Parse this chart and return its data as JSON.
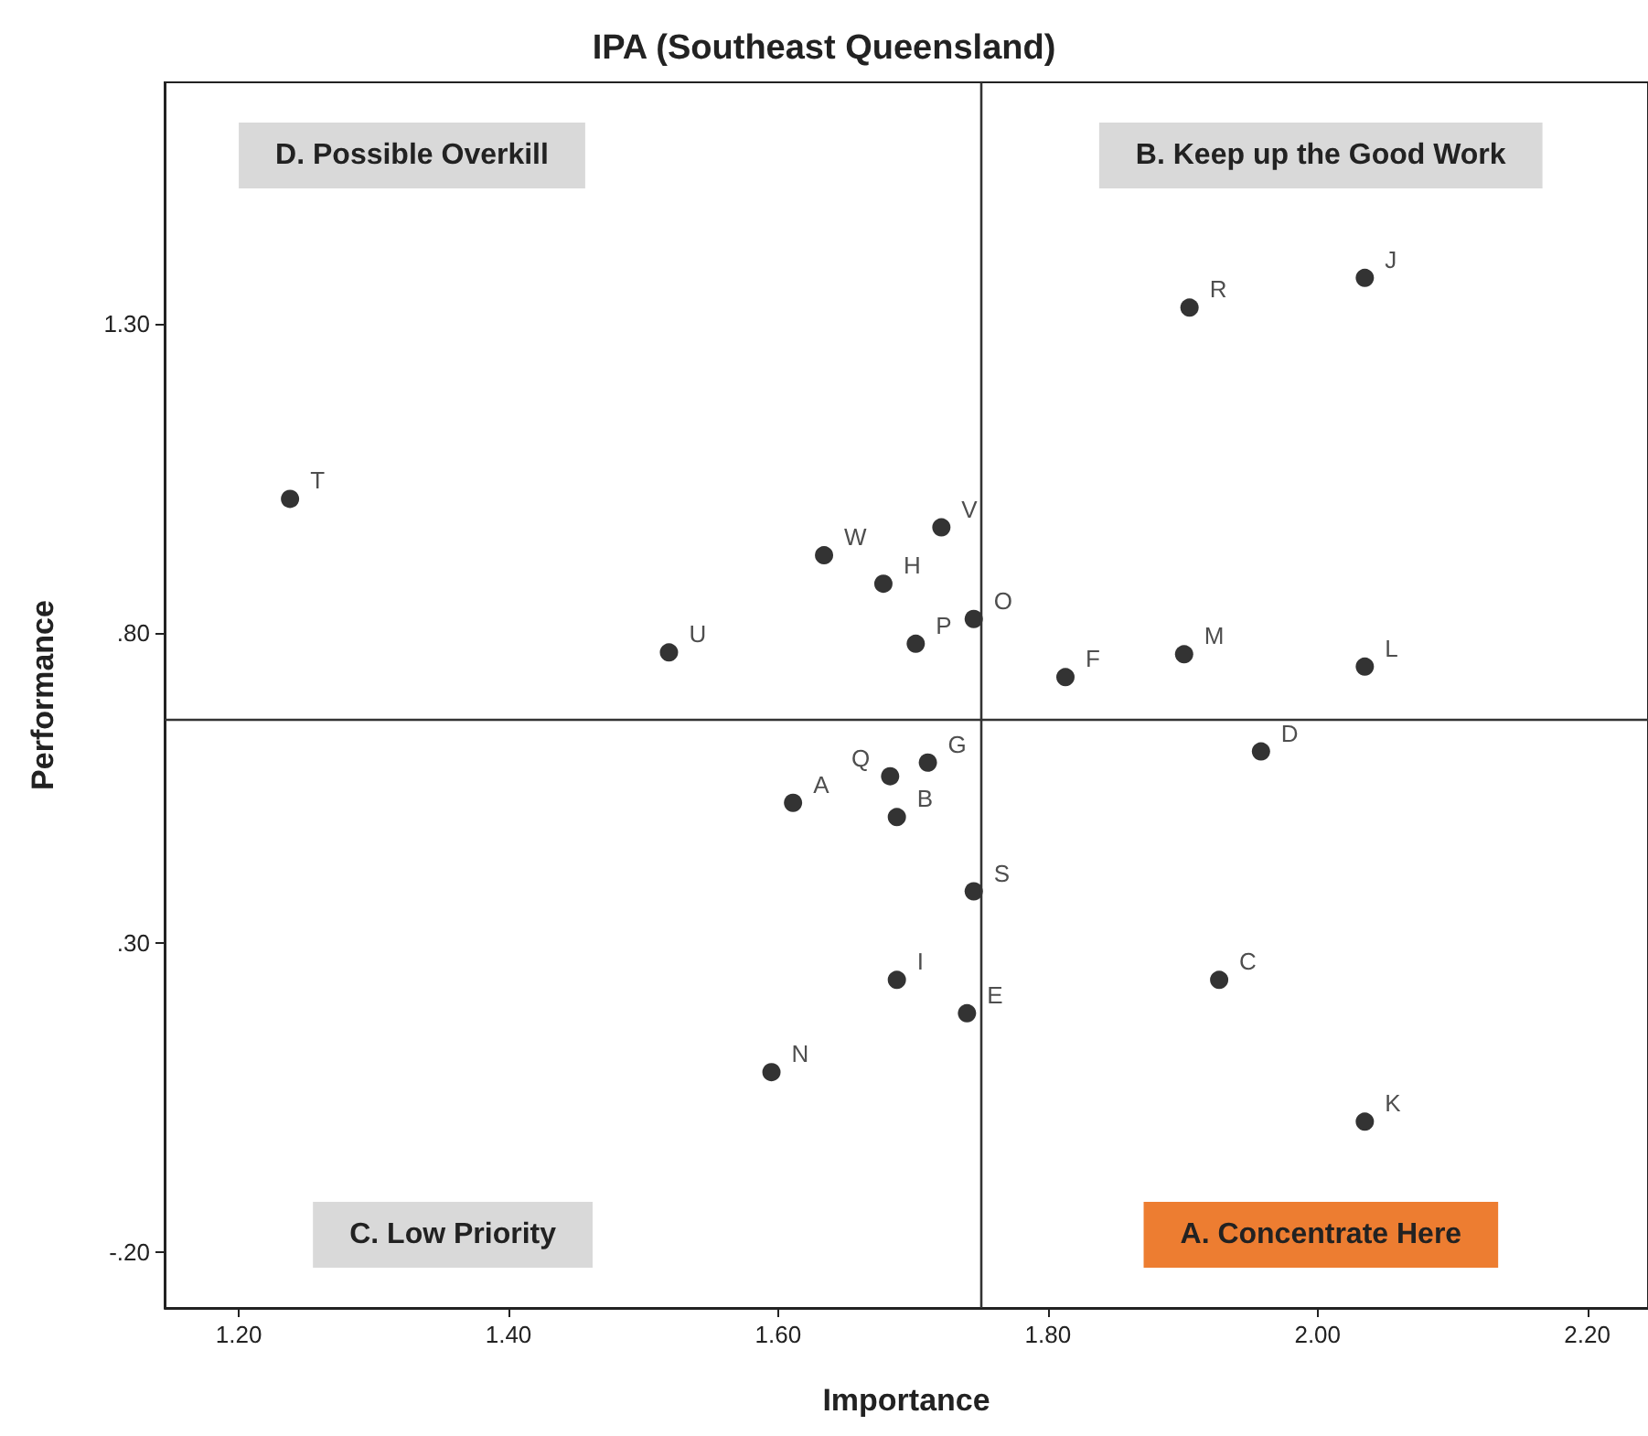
{
  "chart_data": {
    "type": "scatter",
    "title": "IPA (Southeast Queensland)",
    "xlabel": "Importance",
    "ylabel": "Performance",
    "x": [
      1.611,
      1.688,
      1.927,
      1.958,
      1.74,
      1.813,
      1.711,
      1.678,
      1.688,
      2.035,
      2.035,
      2.035,
      1.901,
      1.595,
      1.745,
      1.702,
      1.683,
      1.905,
      1.745,
      1.238,
      1.519,
      1.721,
      1.634
    ],
    "values": [
      0.526,
      0.503,
      0.24,
      0.609,
      0.186,
      0.729,
      0.591,
      0.88,
      0.24,
      1.374,
      0.011,
      0.746,
      0.766,
      0.091,
      0.823,
      0.783,
      0.569,
      1.326,
      0.383,
      1.017,
      0.769,
      0.971,
      0.926
    ],
    "value_labels": [
      "A",
      "B",
      "C",
      "D",
      "E",
      "F",
      "G",
      "H",
      "I",
      "J",
      "K",
      "L",
      "M",
      "N",
      "O",
      "P",
      "Q",
      "R",
      "S",
      "T",
      "U",
      "V",
      "W"
    ],
    "color": "#000000",
    "marker": "circle",
    "xlim": [
      1.145,
      2.245
    ],
    "xticks": [
      {
        "value": 1.2,
        "label": "1.20"
      },
      {
        "value": 1.4,
        "label": "1.40"
      },
      {
        "value": 1.6,
        "label": "1.60"
      },
      {
        "value": 1.8,
        "label": "1.80"
      },
      {
        "value": 2.0,
        "label": "2.00"
      },
      {
        "value": 2.2,
        "label": "2.20"
      }
    ],
    "ylim": [
      -0.29,
      1.69
    ],
    "yticks": [
      {
        "value": -0.2,
        "label": "-.20"
      },
      {
        "value": 0.3,
        "label": ".30"
      },
      {
        "value": 0.8,
        "label": ".80"
      },
      {
        "value": 1.3,
        "label": "1.30"
      }
    ],
    "ref_lines": [
      {
        "axis": "x",
        "value": 1.753,
        "color": "#333333"
      },
      {
        "axis": "y",
        "value": 0.657,
        "color": "#333333"
      }
    ],
    "annotations": [
      "D. Possible Overkill",
      "B. Keep up the Good Work",
      "C. Low Priority",
      "A. Concentrate Here"
    ],
    "grid": false
  }
}
